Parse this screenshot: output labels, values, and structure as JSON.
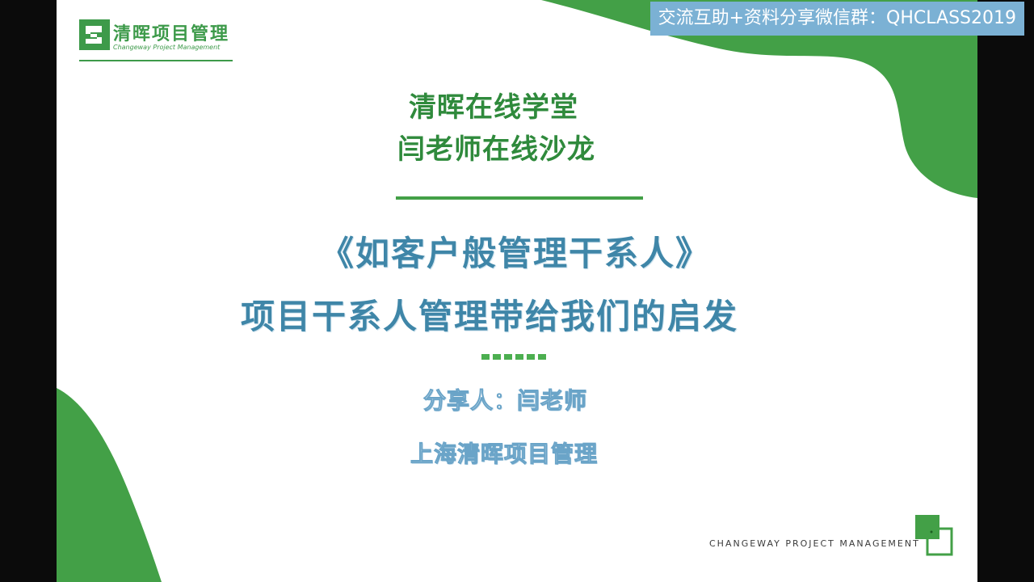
{
  "watermark": {
    "text": "交流互助+资料分享微信群：QHCLASS2019"
  },
  "logo": {
    "cn": "清晖项目管理",
    "en": "Changeway Project Management"
  },
  "titles": {
    "line1": "清晖在线学堂",
    "line2": "闫老师在线沙龙"
  },
  "main_title": {
    "line1": "《如客户般管理干系人》",
    "line2": "项目干系人管理带给我们的启发"
  },
  "sharer": {
    "name": "分享人：闫老师",
    "org": "上海清晖项目管理"
  },
  "footer": {
    "brand": "CHANGEWAY PROJECT MANAGEMENT"
  },
  "colors": {
    "green": "#43a047",
    "blue": "#3f86a8",
    "watermark_bg": "#7bb1d4"
  }
}
